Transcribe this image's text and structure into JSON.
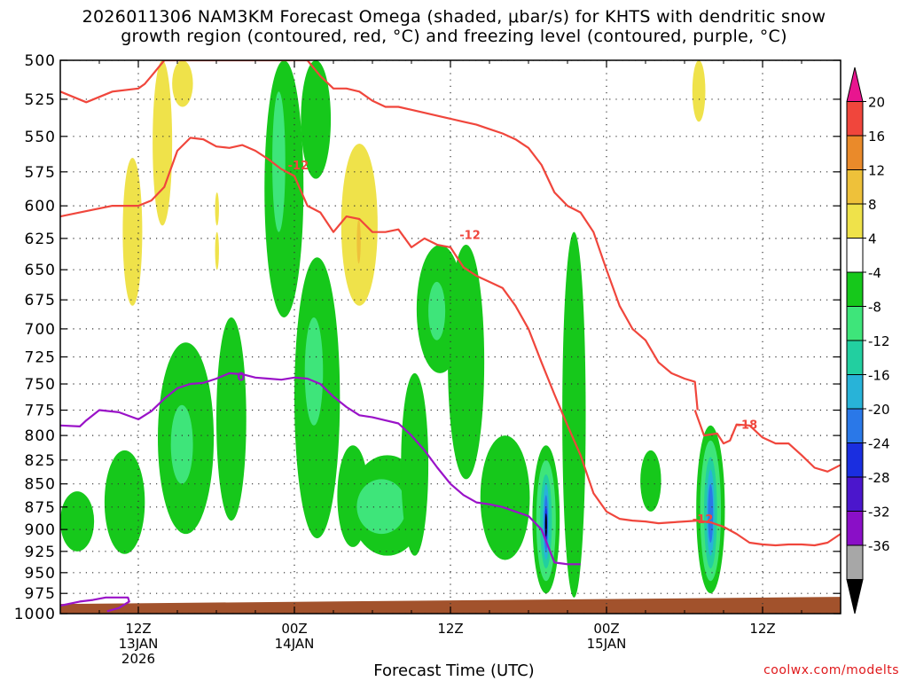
{
  "title_line1": "2026011306 NAM3KM Forecast Omega (shaded, μbar/s) for KHTS with dendritic snow",
  "title_line2": "growth region (contoured, red, °C) and freezing level (contoured, purple, °C)",
  "credit": "coolwx.com/modelts",
  "colors": {
    "green_dark": "#16c81b",
    "green_mid": "#3ee57a",
    "teal": "#22cfa0",
    "cyan": "#28b3d8",
    "blue": "#2a78e8",
    "deep_blue": "#1a2ee0",
    "indigo": "#4b16cc",
    "purple": "#8a0fc7",
    "yellow": "#efe24a",
    "gold": "#eec13a",
    "orange": "#ea8a2a",
    "red_contour": "#f0463c",
    "purple_contour": "#9a12c8",
    "terrain": "#a2522c",
    "magenta": "#e8158f"
  },
  "chart_data": {
    "type": "heatmap",
    "title": "2026011306 NAM3KM Forecast Omega (shaded, μbar/s) for KHTS with dendritic snow growth region (contoured, red, °C) and freezing level (contoured, purple, °C)",
    "xlabel": "Forecast Time (UTC)",
    "ylabel": "",
    "y_ticks": [
      500,
      525,
      550,
      575,
      600,
      625,
      650,
      675,
      700,
      725,
      750,
      775,
      800,
      825,
      850,
      875,
      900,
      925,
      950,
      975,
      1000
    ],
    "ylim": [
      1000,
      500
    ],
    "y_scale": "log-pressure",
    "x_range_hours": [
      0,
      60
    ],
    "x_ticks": [
      {
        "hour": 6,
        "label": [
          "12Z",
          "13JAN",
          "2026"
        ]
      },
      {
        "hour": 18,
        "label": [
          "00Z",
          "14JAN"
        ]
      },
      {
        "hour": 30,
        "label": [
          "12Z"
        ]
      },
      {
        "hour": 42,
        "label": [
          "00Z",
          "15JAN"
        ]
      },
      {
        "hour": 54,
        "label": [
          "12Z"
        ]
      }
    ],
    "grid": true,
    "colorbar": {
      "labels": [
        "20",
        "16",
        "12",
        "8",
        "4",
        "-4",
        "-8",
        "-12",
        "-16",
        "-20",
        "-24",
        "-28",
        "-32",
        "-36"
      ],
      "colors": [
        "#e8158f",
        "#f0463c",
        "#ea8a2a",
        "#eec13a",
        "#efe24a",
        "#ffffff",
        "#16c81b",
        "#3ee57a",
        "#22cfa0",
        "#28b3d8",
        "#2a78e8",
        "#1a2ee0",
        "#4b16cc",
        "#8a0fc7",
        "#a7a7a7",
        "#000000"
      ]
    },
    "contour_labels": [
      {
        "text": "-12",
        "hour": 18.3,
        "p": 570,
        "color": "red"
      },
      {
        "text": "-12",
        "hour": 31.5,
        "p": 622,
        "color": "red"
      },
      {
        "text": "-18",
        "hour": 52.8,
        "p": 789,
        "color": "red"
      },
      {
        "text": "-12",
        "hour": 49.4,
        "p": 888,
        "color": "red"
      },
      {
        "text": "0",
        "hour": 13.9,
        "p": 743,
        "color": "purple"
      }
    ],
    "omega_cells": [
      {
        "h0": 0.0,
        "h1": 2.6,
        "p0": 858,
        "p1": 925,
        "level": -5
      },
      {
        "h0": 3.4,
        "h1": 6.5,
        "p0": 815,
        "p1": 928,
        "level": -5
      },
      {
        "h0": 7.5,
        "h1": 11.8,
        "p0": 712,
        "p1": 905,
        "level": -5
      },
      {
        "h0": 8.5,
        "h1": 10.2,
        "p0": 770,
        "p1": 850,
        "level": -9
      },
      {
        "h0": 12.0,
        "h1": 14.3,
        "p0": 690,
        "p1": 890,
        "level": -5
      },
      {
        "h0": 15.7,
        "h1": 18.7,
        "p0": 500,
        "p1": 690,
        "level": -5
      },
      {
        "h0": 16.3,
        "h1": 17.3,
        "p0": 520,
        "p1": 620,
        "level": -9
      },
      {
        "h0": 18.5,
        "h1": 20.8,
        "p0": 500,
        "p1": 580,
        "level": -5
      },
      {
        "h0": 18.0,
        "h1": 21.5,
        "p0": 640,
        "p1": 910,
        "level": -5
      },
      {
        "h0": 18.8,
        "h1": 20.2,
        "p0": 690,
        "p1": 790,
        "level": -9
      },
      {
        "h0": 21.3,
        "h1": 23.7,
        "p0": 810,
        "p1": 920,
        "level": -5
      },
      {
        "h0": 22.3,
        "h1": 28.0,
        "p0": 820,
        "p1": 930,
        "level": -5
      },
      {
        "h0": 22.8,
        "h1": 26.6,
        "p0": 845,
        "p1": 905,
        "level": -9
      },
      {
        "h0": 26.2,
        "h1": 28.3,
        "p0": 740,
        "p1": 930,
        "level": -5
      },
      {
        "h0": 27.4,
        "h1": 31.0,
        "p0": 630,
        "p1": 740,
        "level": -5
      },
      {
        "h0": 28.3,
        "h1": 29.6,
        "p0": 660,
        "p1": 710,
        "level": -9
      },
      {
        "h0": 29.8,
        "h1": 32.6,
        "p0": 630,
        "p1": 845,
        "level": -5
      },
      {
        "h0": 32.3,
        "h1": 36.1,
        "p0": 800,
        "p1": 935,
        "level": -5
      },
      {
        "h0": 36.3,
        "h1": 38.4,
        "p0": 810,
        "p1": 975,
        "level": -5
      },
      {
        "h0": 36.6,
        "h1": 38.1,
        "p0": 825,
        "p1": 960,
        "level": -9
      },
      {
        "h0": 36.9,
        "h1": 37.8,
        "p0": 840,
        "p1": 945,
        "level": -13
      },
      {
        "h0": 37.1,
        "h1": 37.6,
        "p0": 850,
        "p1": 935,
        "level": -17
      },
      {
        "h0": 37.2,
        "h1": 37.5,
        "p0": 862,
        "p1": 925,
        "level": -21
      },
      {
        "h0": 37.25,
        "h1": 37.45,
        "p0": 875,
        "p1": 915,
        "level": -27
      },
      {
        "h0": 37.3,
        "h1": 37.4,
        "p0": 882,
        "p1": 908,
        "level": -36
      },
      {
        "h0": 38.6,
        "h1": 40.4,
        "p0": 620,
        "p1": 980,
        "level": -5
      },
      {
        "h0": 44.6,
        "h1": 46.2,
        "p0": 815,
        "p1": 880,
        "level": -5
      },
      {
        "h0": 48.9,
        "h1": 51.1,
        "p0": 790,
        "p1": 975,
        "level": -5
      },
      {
        "h0": 49.2,
        "h1": 50.8,
        "p0": 805,
        "p1": 960,
        "level": -9
      },
      {
        "h0": 49.5,
        "h1": 50.5,
        "p0": 822,
        "p1": 945,
        "level": -13
      },
      {
        "h0": 49.7,
        "h1": 50.3,
        "p0": 835,
        "p1": 930,
        "level": -17
      },
      {
        "h0": 49.8,
        "h1": 50.2,
        "p0": 850,
        "p1": 915,
        "level": -22
      },
      {
        "h0": 4.8,
        "h1": 6.3,
        "p0": 565,
        "p1": 680,
        "level": 5
      },
      {
        "h0": 7.1,
        "h1": 8.6,
        "p0": 500,
        "p1": 615,
        "level": 5
      },
      {
        "h0": 8.6,
        "h1": 10.2,
        "p0": 500,
        "p1": 530,
        "level": 5
      },
      {
        "h0": 11.9,
        "h1": 12.2,
        "p0": 590,
        "p1": 615,
        "level": 5
      },
      {
        "h0": 11.9,
        "h1": 12.2,
        "p0": 620,
        "p1": 650,
        "level": 5
      },
      {
        "h0": 21.6,
        "h1": 24.4,
        "p0": 555,
        "p1": 680,
        "level": 5
      },
      {
        "h0": 22.8,
        "h1": 23.1,
        "p0": 610,
        "p1": 645,
        "level": 9
      },
      {
        "h0": 48.6,
        "h1": 49.6,
        "p0": 500,
        "p1": 540,
        "level": 5
      }
    ],
    "dgz_contours": [
      {
        "level": -12,
        "hours": [
          0,
          2,
          4,
          6,
          7,
          8,
          9,
          10,
          11,
          12,
          13,
          14,
          15,
          16,
          17,
          18,
          19,
          20,
          21,
          22,
          23,
          24,
          25,
          26,
          27,
          28,
          29,
          30,
          31,
          32,
          33,
          34,
          35,
          36,
          37,
          38,
          39,
          40,
          41,
          42,
          43,
          44,
          45,
          46,
          47,
          48,
          49,
          50,
          51,
          52,
          53,
          54,
          55,
          56,
          57,
          58,
          59,
          60
        ],
        "p": [
          608,
          604,
          600,
          600,
          596,
          586,
          560,
          551,
          552,
          557,
          558,
          556,
          560,
          566,
          573,
          578,
          600,
          605,
          620,
          608,
          610,
          620,
          620,
          618,
          632,
          625,
          630,
          632,
          648,
          655,
          660,
          665,
          680,
          700,
          730,
          760,
          790,
          820,
          860,
          880,
          888,
          890,
          891,
          893,
          892,
          891,
          890,
          892,
          897,
          905,
          915,
          917,
          918,
          917,
          917,
          918,
          915,
          905
        ]
      },
      {
        "level": -12,
        "hours": [
          0,
          2,
          4,
          6,
          6.5,
          7,
          8,
          9,
          10,
          11,
          12,
          13,
          14,
          15,
          16,
          17,
          18,
          19,
          20,
          21,
          22,
          23,
          24,
          25,
          26,
          27,
          28,
          29,
          30,
          31,
          32,
          33,
          34,
          35,
          36,
          37,
          38,
          39,
          40,
          41,
          42,
          43,
          44,
          45,
          46,
          47,
          48,
          48.8,
          49
        ],
        "p": [
          520,
          527,
          520,
          518,
          515,
          510,
          500,
          500,
          500,
          500,
          500,
          500,
          500,
          500,
          500,
          500,
          500,
          500,
          510,
          518,
          518,
          520,
          526,
          530,
          530,
          532,
          534,
          536,
          538,
          540,
          542,
          545,
          548,
          552,
          558,
          570,
          590,
          600,
          605,
          620,
          650,
          680,
          700,
          710,
          730,
          740,
          745,
          748,
          775
        ]
      },
      {
        "level": -18,
        "hours": [
          48.8,
          49.5,
          50.5,
          51,
          51.5,
          52,
          53,
          54,
          55,
          56,
          57,
          58,
          59,
          60
        ],
        "p": [
          775,
          800,
          798,
          808,
          805,
          789,
          790,
          802,
          808,
          808,
          820,
          833,
          837,
          830
        ]
      }
    ],
    "freezing_level": {
      "level": 0,
      "hours": [
        0,
        1.5,
        2,
        3,
        4.5,
        6,
        7,
        8,
        9,
        10,
        11,
        12,
        13,
        14,
        15,
        16,
        17,
        18,
        19,
        20,
        21,
        22,
        23,
        24,
        25,
        26,
        27,
        28,
        29,
        30,
        31,
        32,
        33,
        34,
        35,
        36,
        37,
        38,
        39,
        40
      ],
      "p": [
        790,
        791,
        785,
        775,
        777,
        784,
        776,
        764,
        754,
        750,
        749,
        745,
        740,
        741,
        744,
        745,
        746,
        744,
        745,
        750,
        762,
        772,
        780,
        782,
        785,
        788,
        800,
        815,
        833,
        850,
        862,
        870,
        872,
        875,
        880,
        885,
        900,
        938,
        940,
        940
      ]
    },
    "freezing_level_small": {
      "hours": [
        0,
        1.5,
        2.5,
        3.5,
        5.2,
        5.3,
        4.5,
        3.6
      ],
      "p": [
        990,
        985,
        983,
        980,
        980,
        985,
        993,
        997
      ]
    },
    "terrain_p": 988
  }
}
